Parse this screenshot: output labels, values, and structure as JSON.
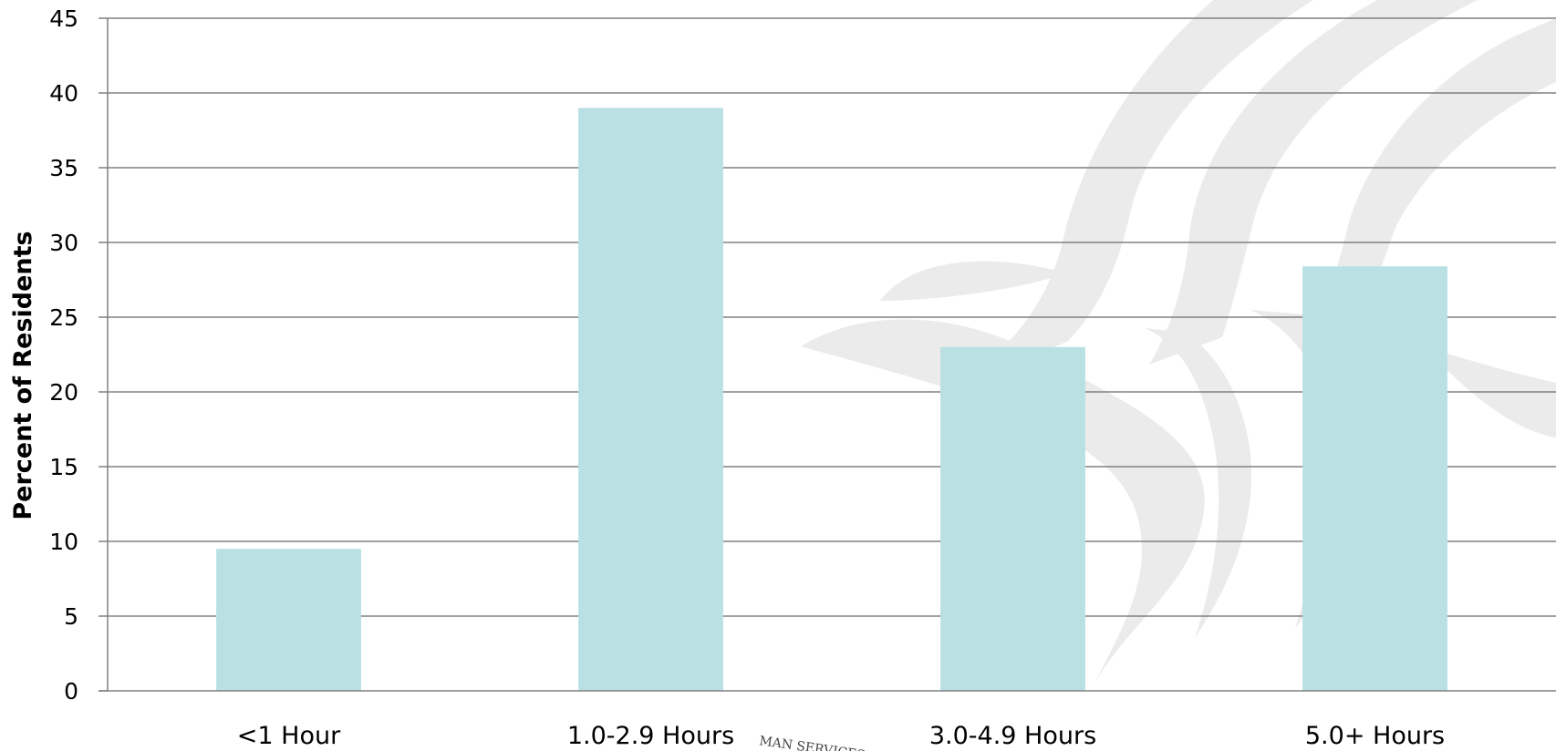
{
  "chart_data": {
    "type": "bar",
    "title": "",
    "xlabel": "",
    "ylabel": "Percent of Residents",
    "categories": [
      "<1 Hour",
      "1.0-2.9 Hours",
      "3.0-4.9 Hours",
      "5.0+ Hours"
    ],
    "values": [
      9.5,
      39.0,
      23.0,
      28.4
    ],
    "ylim": [
      0,
      45
    ],
    "yticks": [
      0,
      5,
      10,
      15,
      20,
      25,
      30,
      35,
      40,
      45
    ],
    "grid": true,
    "legend": "none",
    "colors": {
      "bar": "#b9e0e3",
      "grid": "#808080",
      "watermark": "#ebebeb"
    }
  },
  "watermark": {
    "seal_text": "MAN SERVICES"
  }
}
